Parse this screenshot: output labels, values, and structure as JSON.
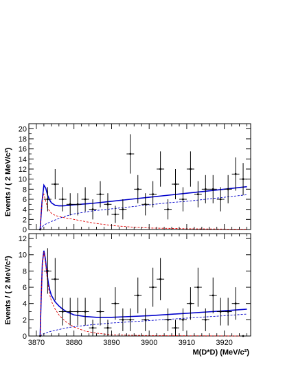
{
  "chart_data": [
    {
      "type": "scatter",
      "title": "",
      "xlabel": "",
      "ylabel": "Events / ( 2 MeV/c²)",
      "xlim": [
        3868,
        3927
      ],
      "ylim": [
        0,
        21
      ],
      "grid": false,
      "x_ticks": [
        3870,
        3880,
        3890,
        3900,
        3910,
        3920
      ],
      "y_ticks": [
        0,
        2,
        4,
        6,
        8,
        10,
        12,
        14,
        16,
        18,
        20
      ],
      "series": [
        {
          "kind": "points-with-errors",
          "color": "#000000",
          "x": [
            3871,
            3873,
            3875,
            3877,
            3879,
            3881,
            3883,
            3885,
            3887,
            3889,
            3891,
            3893,
            3895,
            3897,
            3899,
            3901,
            3903,
            3905,
            3907,
            3909,
            3911,
            3913,
            3915,
            3917,
            3919,
            3921,
            3923,
            3925
          ],
          "y": [
            0,
            6,
            9,
            6,
            5,
            5,
            6,
            4,
            7,
            5,
            3,
            4,
            15,
            8,
            5,
            7,
            12,
            4,
            9,
            6,
            12,
            7,
            8,
            8,
            6,
            8,
            11,
            10
          ],
          "yerr": [
            0,
            2.4,
            3.0,
            2.4,
            2.2,
            2.2,
            2.4,
            2.0,
            2.6,
            2.2,
            1.7,
            2.0,
            3.9,
            2.8,
            2.2,
            2.6,
            3.5,
            2.0,
            3.0,
            2.4,
            3.5,
            2.6,
            2.8,
            2.8,
            2.4,
            2.8,
            3.3,
            3.2
          ]
        },
        {
          "kind": "curve-total",
          "color": "#0000cc",
          "x": [
            3871.0,
            3871.5,
            3872.0,
            3872.5,
            3873.0,
            3873.5,
            3874.0,
            3875.0,
            3876.0,
            3877.0,
            3878.0,
            3880.0,
            3885.0,
            3890.0,
            3895.0,
            3900.0,
            3905.0,
            3910.0,
            3915.0,
            3920.0,
            3926.0
          ],
          "y": [
            0,
            5.5,
            8.8,
            8.2,
            6.8,
            5.9,
            5.3,
            4.8,
            4.7,
            4.7,
            4.75,
            4.9,
            5.2,
            5.6,
            6.0,
            6.4,
            6.8,
            7.2,
            7.6,
            8.0,
            8.5
          ]
        },
        {
          "kind": "curve-signal",
          "color": "#dd0000",
          "x": [
            3871.0,
            3871.3,
            3871.6,
            3872.0,
            3872.5,
            3873.0,
            3874.0,
            3875.0,
            3877.0,
            3880.0,
            3885.0,
            3890.0,
            3895.0,
            3900.0,
            3910.0,
            3926.0
          ],
          "y": [
            0,
            3.5,
            6.0,
            7.0,
            5.6,
            4.2,
            3.2,
            2.8,
            2.4,
            2.0,
            1.3,
            0.8,
            0.5,
            0.3,
            0.15,
            0.05
          ]
        },
        {
          "kind": "curve-background",
          "color": "#0000cc",
          "x": [
            3871.0,
            3872.0,
            3874.0,
            3876.0,
            3878.0,
            3880.0,
            3885.0,
            3890.0,
            3895.0,
            3900.0,
            3905.0,
            3910.0,
            3915.0,
            3920.0,
            3926.0
          ],
          "y": [
            0,
            0.9,
            1.6,
            2.2,
            2.7,
            3.1,
            3.7,
            4.1,
            4.5,
            4.9,
            5.3,
            5.6,
            6.0,
            6.4,
            6.9
          ]
        }
      ]
    },
    {
      "type": "scatter",
      "title": "",
      "xlabel": "M(D*D) (MeV/c²)",
      "ylabel": "Events / ( 2 MeV/c²)",
      "xlim": [
        3868,
        3927
      ],
      "ylim": [
        0,
        12.6
      ],
      "grid": false,
      "x_ticks": [
        3870,
        3880,
        3890,
        3900,
        3910,
        3920
      ],
      "y_ticks": [
        0,
        2,
        4,
        6,
        8,
        10,
        12
      ],
      "series": [
        {
          "kind": "points-with-errors",
          "color": "#000000",
          "x": [
            3871,
            3873,
            3875,
            3877,
            3879,
            3881,
            3883,
            3885,
            3887,
            3889,
            3891,
            3893,
            3895,
            3897,
            3899,
            3901,
            3903,
            3905,
            3907,
            3909,
            3911,
            3913,
            3915,
            3917,
            3919,
            3921,
            3923,
            3925
          ],
          "y": [
            0,
            8,
            7,
            3,
            3,
            3,
            3,
            1,
            3,
            1,
            4,
            2,
            2,
            5,
            2,
            6,
            7,
            2,
            1,
            2,
            4,
            6,
            2,
            5,
            3,
            3,
            4,
            0
          ],
          "yerr": [
            0,
            2.8,
            2.6,
            1.7,
            1.7,
            1.7,
            1.7,
            1.0,
            1.7,
            1.0,
            2.0,
            1.4,
            1.4,
            2.2,
            1.4,
            2.4,
            2.6,
            1.4,
            1.0,
            1.4,
            2.0,
            2.4,
            1.4,
            2.2,
            1.7,
            1.7,
            2.0,
            0
          ]
        },
        {
          "kind": "curve-total",
          "color": "#0000cc",
          "x": [
            3871.0,
            3871.3,
            3871.6,
            3872.0,
            3872.4,
            3872.8,
            3873.2,
            3873.6,
            3874.0,
            3875.0,
            3876.0,
            3877.0,
            3878.0,
            3880.0,
            3883.0,
            3886.0,
            3890.0,
            3895.0,
            3900.0,
            3905.0,
            3910.0,
            3915.0,
            3920.0,
            3926.0
          ],
          "y": [
            0,
            5.0,
            9.0,
            10.5,
            9.5,
            7.8,
            6.5,
            5.6,
            5.0,
            4.2,
            3.7,
            3.3,
            3.0,
            2.6,
            2.4,
            2.3,
            2.3,
            2.4,
            2.5,
            2.65,
            2.8,
            2.95,
            3.1,
            3.3
          ]
        },
        {
          "kind": "curve-signal",
          "color": "#dd0000",
          "x": [
            3871.0,
            3871.3,
            3871.6,
            3872.0,
            3872.4,
            3872.8,
            3873.2,
            3873.6,
            3874.0,
            3875.0,
            3876.0,
            3877.0,
            3878.0,
            3880.0,
            3883.0,
            3886.0,
            3890.0,
            3900.0,
            3926.0
          ],
          "y": [
            0,
            4.9,
            8.9,
            10.3,
            9.2,
            7.4,
            6.0,
            5.0,
            4.3,
            3.3,
            2.6,
            2.1,
            1.7,
            1.1,
            0.6,
            0.35,
            0.15,
            0.05,
            0.0
          ]
        },
        {
          "kind": "curve-background",
          "color": "#0000cc",
          "x": [
            3871.0,
            3872.0,
            3874.0,
            3876.0,
            3878.0,
            3880.0,
            3885.0,
            3890.0,
            3895.0,
            3900.0,
            3905.0,
            3910.0,
            3915.0,
            3920.0,
            3926.0
          ],
          "y": [
            0,
            0.3,
            0.6,
            0.8,
            1.0,
            1.15,
            1.4,
            1.6,
            1.75,
            1.9,
            2.05,
            2.2,
            2.35,
            2.5,
            2.7
          ]
        }
      ]
    }
  ]
}
